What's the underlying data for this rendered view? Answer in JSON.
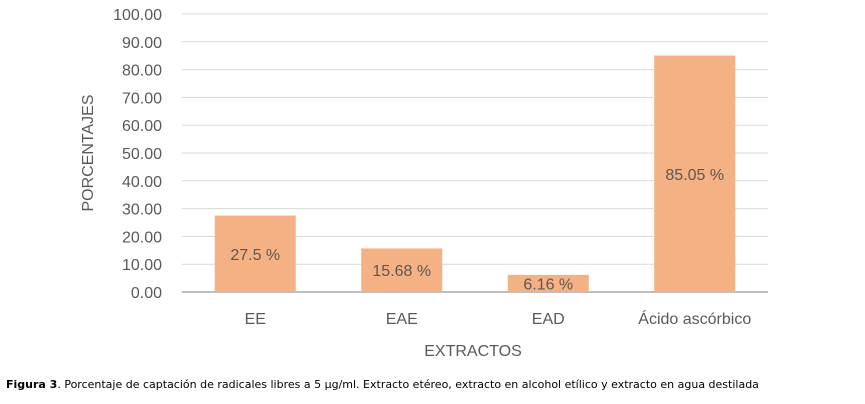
{
  "chart_data": {
    "type": "bar",
    "categories": [
      "EE",
      "EAE",
      "EAD",
      "Ácido ascórbico"
    ],
    "values": [
      27.5,
      15.68,
      6.16,
      85.05
    ],
    "data_labels": [
      "27.5 %",
      "15.68 %",
      "6.16 %",
      "85.05 %"
    ],
    "xlabel": "EXTRACTOS",
    "ylabel": "PORCENTAJES",
    "ylim": [
      0,
      100
    ],
    "yticks": [
      "0.00",
      "10.00",
      "20.00",
      "30.00",
      "40.00",
      "50.00",
      "60.00",
      "70.00",
      "80.00",
      "90.00",
      "100.00"
    ],
    "grid": true,
    "colors": {
      "bar": "#F4B183",
      "grid": "#D9D9D9",
      "axis": "#BFBFBF",
      "text": "#595959"
    }
  },
  "caption": {
    "label": "Figura 3",
    "text": ". Porcentaje de captación de radicales libres a 5 µg/ml. Extracto etéreo, extracto en alcohol etílico y extracto en agua destilada"
  }
}
